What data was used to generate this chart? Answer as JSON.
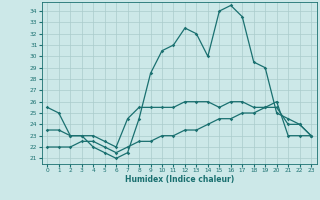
{
  "xlabel": "Humidex (Indice chaleur)",
  "xlim": [
    -0.5,
    23.5
  ],
  "ylim": [
    20.5,
    34.8
  ],
  "yticks": [
    21,
    22,
    23,
    24,
    25,
    26,
    27,
    28,
    29,
    30,
    31,
    32,
    33,
    34
  ],
  "xticks": [
    0,
    1,
    2,
    3,
    4,
    5,
    6,
    7,
    8,
    9,
    10,
    11,
    12,
    13,
    14,
    15,
    16,
    17,
    18,
    19,
    20,
    21,
    22,
    23
  ],
  "bg_color": "#cce8e8",
  "grid_color": "#aacccc",
  "line_color": "#1a7070",
  "line1_x": [
    0,
    1,
    2,
    3,
    4,
    5,
    6,
    7,
    8,
    9,
    10,
    11,
    12,
    13,
    14,
    15,
    16,
    17,
    18,
    19,
    20,
    21,
    22,
    23
  ],
  "line1_y": [
    25.5,
    25.0,
    23.0,
    23.0,
    22.0,
    21.5,
    21.0,
    21.5,
    24.5,
    28.5,
    30.5,
    31.0,
    32.5,
    32.0,
    30.0,
    34.0,
    34.5,
    33.5,
    29.5,
    29.0,
    25.0,
    24.5,
    24.0,
    23.0
  ],
  "line1_markers": [
    0,
    1,
    2,
    3,
    4,
    5,
    6,
    7,
    8,
    9,
    10,
    11,
    12,
    13,
    14,
    15,
    16,
    17,
    18,
    19,
    20,
    21,
    22,
    23
  ],
  "line2_x": [
    0,
    1,
    2,
    3,
    4,
    5,
    6,
    7,
    8,
    9,
    10,
    11,
    12,
    13,
    14,
    15,
    16,
    17,
    18,
    19,
    20,
    21,
    22,
    23
  ],
  "line2_y": [
    23.5,
    23.5,
    23.0,
    23.0,
    23.0,
    22.5,
    22.0,
    24.5,
    25.5,
    25.5,
    25.5,
    25.5,
    26.0,
    26.0,
    26.0,
    25.5,
    26.0,
    26.0,
    25.5,
    25.5,
    25.5,
    24.0,
    24.0,
    23.0
  ],
  "line2_markers": [
    0,
    1,
    2,
    3,
    4,
    5,
    6,
    7,
    8,
    9,
    10,
    11,
    12,
    13,
    14,
    15,
    16,
    17,
    18,
    19,
    20,
    21,
    22,
    23
  ],
  "line3_x": [
    0,
    1,
    2,
    3,
    4,
    5,
    6,
    7,
    8,
    9,
    10,
    11,
    12,
    13,
    14,
    15,
    16,
    17,
    18,
    19,
    20,
    21,
    22,
    23
  ],
  "line3_y": [
    22.0,
    22.0,
    22.0,
    22.5,
    22.5,
    22.0,
    21.5,
    22.0,
    22.5,
    22.5,
    23.0,
    23.0,
    23.5,
    23.5,
    24.0,
    24.5,
    24.5,
    25.0,
    25.0,
    25.5,
    26.0,
    23.0,
    23.0,
    23.0
  ],
  "line3_markers": [
    0,
    1,
    2,
    3,
    4,
    5,
    6,
    7,
    8,
    9,
    10,
    11,
    12,
    13,
    14,
    15,
    16,
    17,
    18,
    19,
    20,
    21,
    22,
    23
  ]
}
